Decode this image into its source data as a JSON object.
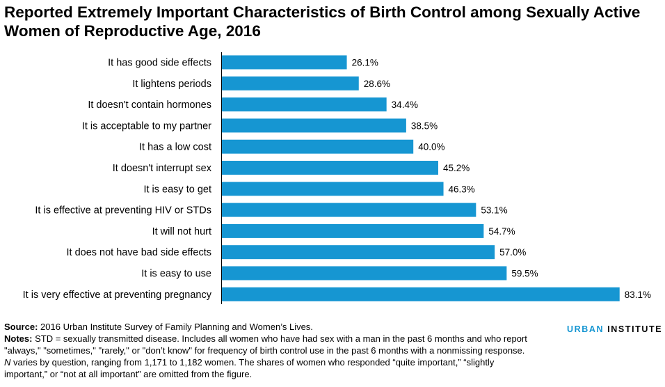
{
  "colors": {
    "bar": "#1696d2",
    "axis": "#000000",
    "brand_accent": "#1696d2"
  },
  "chart_data": {
    "type": "bar",
    "orientation": "horizontal",
    "title": "Reported Extremely Important Characteristics of Birth Control among Sexually Active Women of Reproductive Age, 2016",
    "title_line1": "Reported Extremely Important Characteristics of Birth Control among Sexually Active",
    "title_line2": "Women of Reproductive Age, 2016",
    "xlim": [
      0,
      100
    ],
    "unit": "%",
    "categories": [
      "It has good side effects",
      "It lightens periods",
      "It doesn't contain hormones",
      "It is acceptable to my partner",
      "It has a low cost",
      "It doesn't interrupt sex",
      "It is easy to get",
      "It is effective at preventing HIV or STDs",
      "It will not hurt",
      "It does not have bad side effects",
      "It is easy to use",
      "It is very effective at preventing pregnancy"
    ],
    "values": [
      26.1,
      28.6,
      34.4,
      38.5,
      40.0,
      45.2,
      46.3,
      53.1,
      54.7,
      57.0,
      59.5,
      83.1
    ],
    "value_labels": [
      "26.1%",
      "28.6%",
      "34.4%",
      "38.5%",
      "40.0%",
      "45.2%",
      "46.3%",
      "53.1%",
      "54.7%",
      "57.0%",
      "59.5%",
      "83.1%"
    ]
  },
  "footer": {
    "source_label": "Source:",
    "source_text": "2016 Urban Institute Survey of Family Planning and Women’s Lives.",
    "notes_label": "Notes:",
    "notes_text_1": "STD = sexually transmitted disease. Includes all women who have had sex with a man in the past 6 months and who report \"always,\" \"sometimes,\" \"rarely,\" or \"don’t know\" for frequency of birth control use in the past 6 months with a nonmissing response.",
    "notes_n": "N",
    "notes_text_2": "varies by question, ranging from 1,171 to 1,182 women. The shares of women who responded “quite important,” “slightly important,” or “not at all important” are omitted from the figure."
  },
  "brand": {
    "part1": "URBAN",
    "part2": "INSTITUTE"
  }
}
